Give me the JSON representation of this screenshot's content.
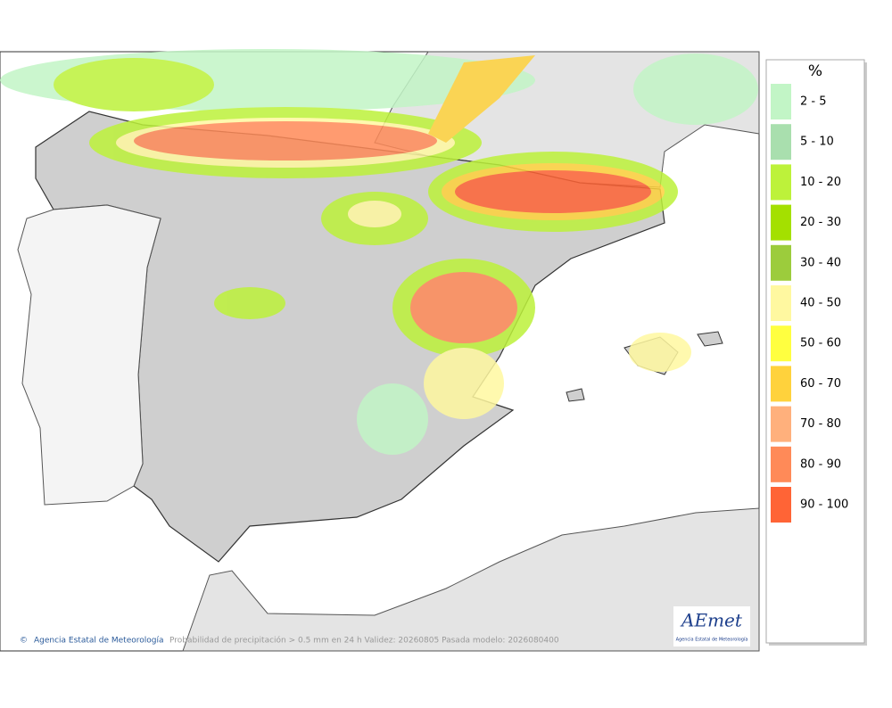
{
  "map": {
    "caption": "Probabilidad de precipitación > 0.5 mm en 24 h Validez: 20260805 Pasada modelo: 2026080400",
    "credit": "Agencia Estatal de Meteorología",
    "logo": {
      "text": "AEmet",
      "subtitle": "Agencia Estatal de Meteorología"
    }
  },
  "legend": {
    "title": "%",
    "items": [
      {
        "label": "2 - 5",
        "color": "#c2f5c6"
      },
      {
        "label": "5 - 10",
        "color": "#a9dfae"
      },
      {
        "label": "10 - 20",
        "color": "#bdf23a"
      },
      {
        "label": "20 - 30",
        "color": "#a4e000"
      },
      {
        "label": "30 - 40",
        "color": "#9ccc3c"
      },
      {
        "label": "40 - 50",
        "color": "#fff8a0"
      },
      {
        "label": "50 - 60",
        "color": "#ffff40"
      },
      {
        "label": "60 - 70",
        "color": "#ffd23c"
      },
      {
        "label": "70 - 80",
        "color": "#ffb07c"
      },
      {
        "label": "80 - 90",
        "color": "#ff8a58"
      },
      {
        "label": "90 - 100",
        "color": "#ff6436"
      }
    ]
  }
}
